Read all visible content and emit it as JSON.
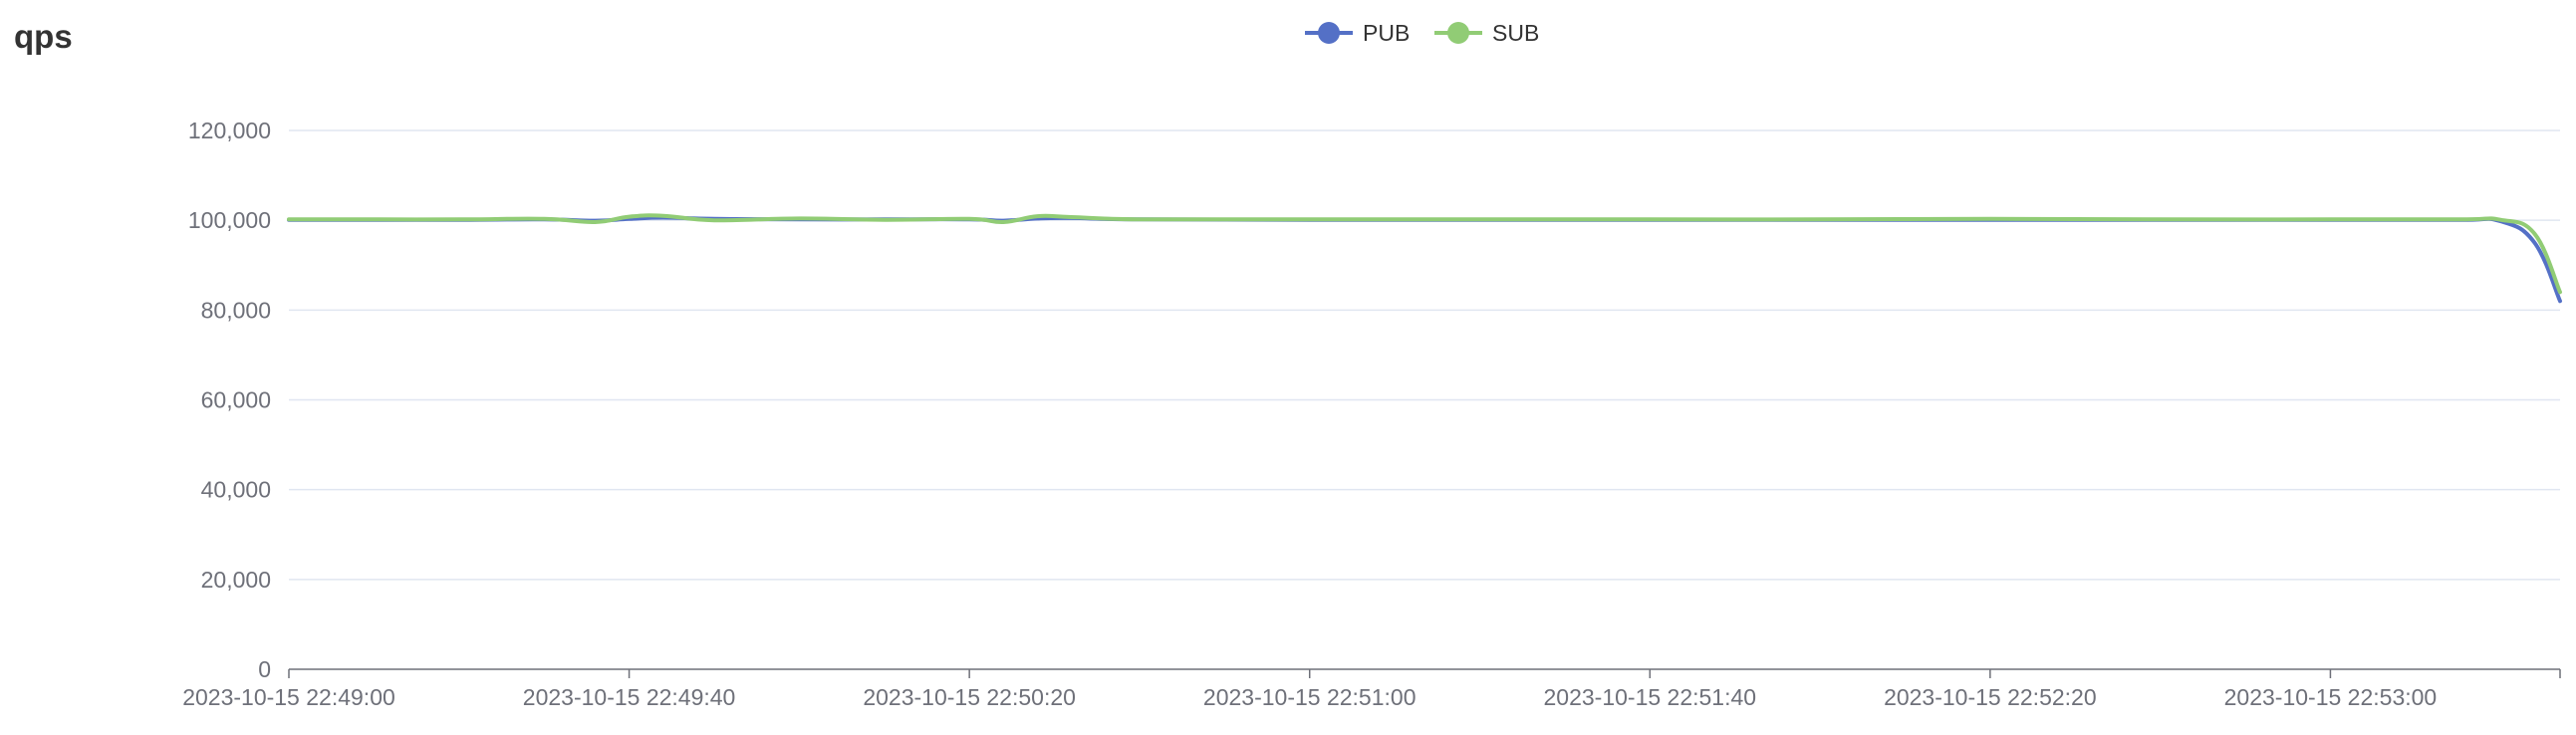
{
  "title": "qps",
  "chart_data": {
    "type": "line",
    "title": "qps",
    "xlabel": "",
    "ylabel": "",
    "ylim": [
      0,
      120000
    ],
    "xlim": [
      "2023-10-15 22:49:00",
      "2023-10-15 22:53:27"
    ],
    "y_ticks": [
      "0",
      "20,000",
      "40,000",
      "60,000",
      "80,000",
      "100,000",
      "120,000"
    ],
    "x_ticks": [
      "2023-10-15 22:49:00",
      "2023-10-15 22:49:40",
      "2023-10-15 22:50:20",
      "2023-10-15 22:51:00",
      "2023-10-15 22:51:40",
      "2023-10-15 22:52:20",
      "2023-10-15 22:53:00"
    ],
    "grid": true,
    "legend_position": "top",
    "x": [
      "2023-10-15 22:49:00",
      "2023-10-15 22:49:10",
      "2023-10-15 22:49:20",
      "2023-10-15 22:49:30",
      "2023-10-15 22:49:36",
      "2023-10-15 22:49:40",
      "2023-10-15 22:49:44",
      "2023-10-15 22:49:50",
      "2023-10-15 22:50:00",
      "2023-10-15 22:50:10",
      "2023-10-15 22:50:20",
      "2023-10-15 22:50:24",
      "2023-10-15 22:50:28",
      "2023-10-15 22:50:32",
      "2023-10-15 22:50:40",
      "2023-10-15 22:51:00",
      "2023-10-15 22:51:20",
      "2023-10-15 22:51:40",
      "2023-10-15 22:52:00",
      "2023-10-15 22:52:20",
      "2023-10-15 22:52:40",
      "2023-10-15 22:53:00",
      "2023-10-15 22:53:15",
      "2023-10-15 22:53:20",
      "2023-10-15 22:53:24",
      "2023-10-15 22:53:27"
    ],
    "series": [
      {
        "name": "PUB",
        "color": "#5470c6",
        "values": [
          100100,
          100100,
          100100,
          100200,
          99900,
          100300,
          100600,
          100300,
          100200,
          100200,
          100200,
          99900,
          100400,
          100500,
          100200,
          100100,
          100100,
          100100,
          100100,
          100100,
          100100,
          100100,
          100100,
          99800,
          95000,
          82000
        ]
      },
      {
        "name": "SUB",
        "color": "#91cc75",
        "values": [
          100200,
          100200,
          100200,
          100300,
          99600,
          100800,
          101000,
          100000,
          100400,
          100100,
          100300,
          99600,
          100900,
          100700,
          100200,
          100200,
          100200,
          100200,
          100200,
          100300,
          100200,
          100200,
          100200,
          100100,
          97000,
          84000
        ]
      }
    ]
  }
}
